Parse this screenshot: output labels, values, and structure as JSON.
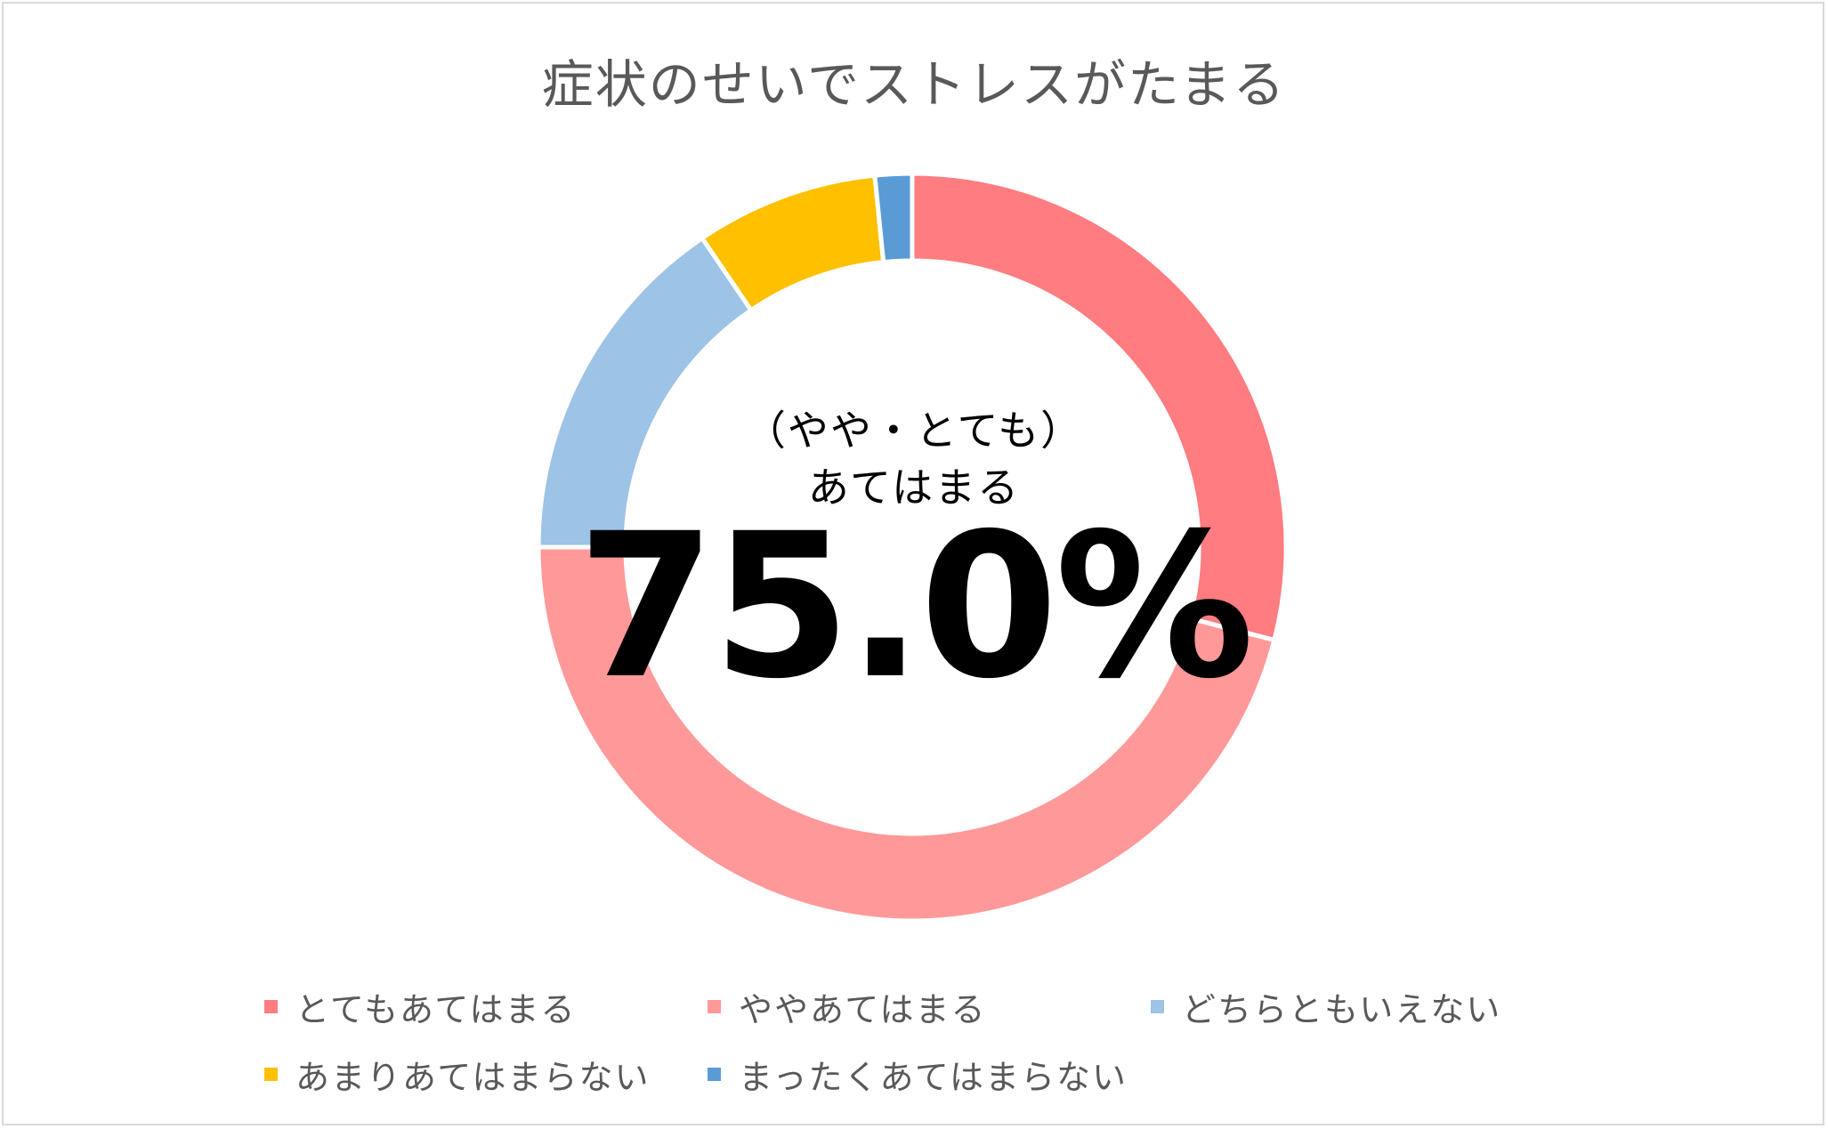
{
  "chart_data": {
    "type": "pie",
    "variant": "donut",
    "title": "症状のせいでストレスがたまる",
    "categories": [
      "とてもあてはまる",
      "ややあてはまる",
      "どちらともいえない",
      "あまりあてはまらない",
      "まったくあてはまらない"
    ],
    "values": [
      29.0,
      46.0,
      15.5,
      7.9,
      1.6
    ],
    "colors": [
      "#ff7c80",
      "#ff9999",
      "#9dc3e6",
      "#ffc000",
      "#5b9bd5"
    ],
    "legend_position": "bottom",
    "center_text": {
      "line1": "（やや・とても）",
      "line2": "あてはまる",
      "value": "75.0%"
    }
  },
  "legend": [
    {
      "label": "とてもあてはまる",
      "color": "#ff7c80"
    },
    {
      "label": "ややあてはまる",
      "color": "#ff9999"
    },
    {
      "label": "どちらともいえない",
      "color": "#9dc3e6"
    },
    {
      "label": "あまりあてはまらない",
      "color": "#ffc000"
    },
    {
      "label": "まったくあてはまらない",
      "color": "#5b9bd5"
    }
  ]
}
